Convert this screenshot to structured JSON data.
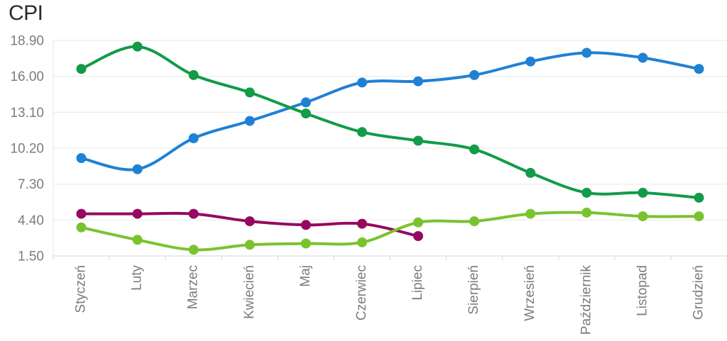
{
  "title": "CPI",
  "colors": {
    "background": "#ffffff",
    "title_text": "#2b2b2b",
    "axis_label": "#7c7c7c",
    "gridline": "#e7e7e7",
    "axis_line": "#d5d5d5"
  },
  "chart_data": {
    "type": "line",
    "title": "CPI",
    "xlabel": "",
    "ylabel": "",
    "legend": "none",
    "grid": true,
    "ylim": [
      1.5,
      18.9
    ],
    "y_tick_labels": [
      "18.90",
      "16.00",
      "13.10",
      "10.20",
      "7.30",
      "4.40",
      "1.50"
    ],
    "y_tick_values": [
      18.9,
      16.0,
      13.1,
      10.2,
      7.3,
      4.4,
      1.5
    ],
    "categories": [
      "Styczeń",
      "Luty",
      "Marzec",
      "Kwiecień",
      "Maj",
      "Czerwiec",
      "Lipiec",
      "Sierpień",
      "Wrzesień",
      "Październik",
      "Listopad",
      "Grudzień"
    ],
    "series": [
      {
        "name": "blue-line",
        "color": "#1f81d4",
        "values": [
          9.4,
          8.5,
          11.0,
          12.4,
          13.9,
          15.5,
          15.6,
          16.1,
          17.2,
          17.9,
          17.5,
          16.6
        ]
      },
      {
        "name": "magenta-line",
        "color": "#950a60",
        "values": [
          4.9,
          4.9,
          4.9,
          4.3,
          4.0,
          4.1,
          3.1
        ]
      },
      {
        "name": "dark-green-line",
        "color": "#129b48",
        "values": [
          16.6,
          18.4,
          16.1,
          14.7,
          13.0,
          11.5,
          10.8,
          10.1,
          8.2,
          6.6,
          6.6,
          6.2
        ]
      },
      {
        "name": "light-green-line",
        "color": "#7ac32f",
        "values": [
          3.8,
          2.8,
          2.0,
          2.4,
          2.5,
          2.6,
          4.2,
          4.3,
          4.9,
          5.0,
          4.7,
          4.7
        ]
      }
    ]
  }
}
